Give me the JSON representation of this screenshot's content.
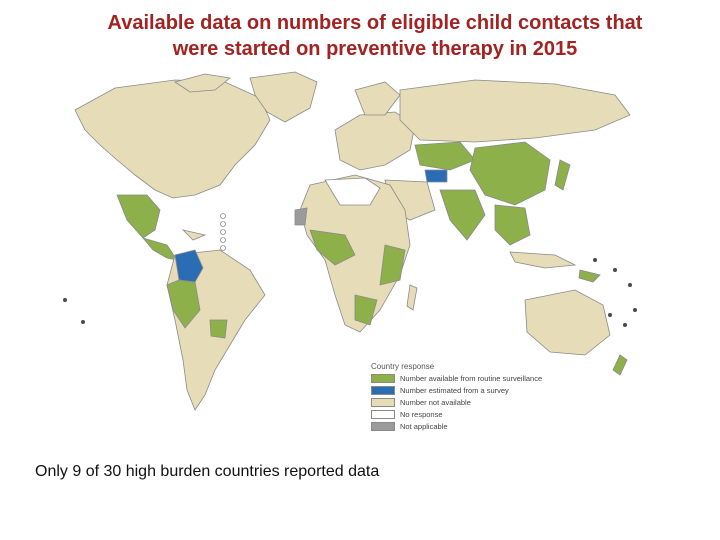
{
  "title": {
    "line1": "Available data on numbers of eligible child contacts that",
    "line2": "were started on preventive therapy in 2015"
  },
  "legend": {
    "title": "Country response",
    "items": [
      {
        "label": "Number available from routine surveillance",
        "color": "#8db04a"
      },
      {
        "label": "Number estimated from a survey",
        "color": "#2a6db5"
      },
      {
        "label": "Number not available",
        "color": "#e6dcb8"
      },
      {
        "label": "No response",
        "color": "#ffffff"
      },
      {
        "label": "Not applicable",
        "color": "#9b9b9b"
      }
    ]
  },
  "caption": "Only 9 of 30 high burden countries reported data",
  "colors": {
    "title": "#a32222",
    "ocean": "#ffffff",
    "border": "#8a8a8a"
  }
}
